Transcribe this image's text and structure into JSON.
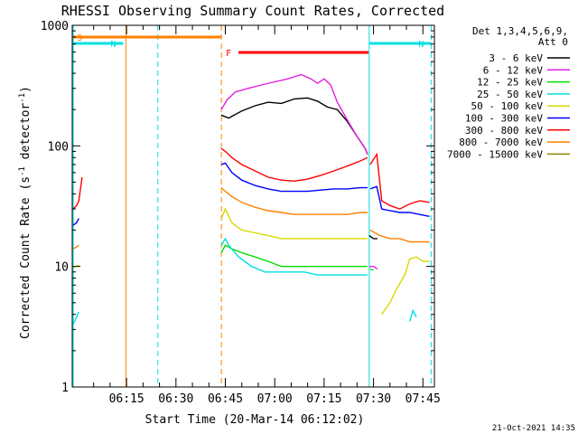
{
  "chart_data": {
    "type": "line",
    "title": "RHESSI Observing Summary Count Rates, Corrected",
    "xlabel": "Start Time (20-Mar-14 06:12:02)",
    "ylabel": "Corrected Count Rate (s⁻¹ detector⁻¹)",
    "ylabel_parts": {
      "base": "Corrected Count Rate (s",
      "sup1": "-1",
      "mid": " detector",
      "sup2": "-1",
      "end": ")"
    },
    "y_scale": "log",
    "ylim": [
      1,
      1000
    ],
    "y_ticks": [
      {
        "value": 1,
        "label": "1"
      },
      {
        "value": 10,
        "label": "10"
      },
      {
        "value": 100,
        "label": "100"
      },
      {
        "value": 1000,
        "label": "1000"
      }
    ],
    "xlim_minutes": [
      358.5,
      468.5
    ],
    "x_ticks": [
      {
        "minutes": 375,
        "label": "06:15"
      },
      {
        "minutes": 390,
        "label": "06:30"
      },
      {
        "minutes": 405,
        "label": "06:45"
      },
      {
        "minutes": 420,
        "label": "07:00"
      },
      {
        "minutes": 435,
        "label": "07:15"
      },
      {
        "minutes": 450,
        "label": "07:30"
      },
      {
        "minutes": 465,
        "label": "07:45"
      }
    ],
    "legend": {
      "placement": "right",
      "header": [
        "Det 1,3,4,5,6,9,",
        "Att 0"
      ],
      "entries": [
        {
          "label": "3 - 6 keV",
          "color": "#000000"
        },
        {
          "label": "6 - 12 keV",
          "color": "#e020e0"
        },
        {
          "label": "12 - 25 keV",
          "color": "#00dd00"
        },
        {
          "label": "25 - 50 keV",
          "color": "#00e0e0"
        },
        {
          "label": "50 - 100 keV",
          "color": "#d8d800"
        },
        {
          "label": "100 - 300 keV",
          "color": "#0000ff"
        },
        {
          "label": "300 - 800 keV",
          "color": "#ff0000"
        },
        {
          "label": "800 - 7000 keV",
          "color": "#ff8000"
        },
        {
          "label": "7000 - 15000 keV",
          "color": "#888800"
        }
      ]
    },
    "flags": [
      {
        "label": "S",
        "color": "#ff8000",
        "start_min": 358.8,
        "end_min": 403.8
      },
      {
        "label": "N",
        "color": "#00e0e0",
        "start_min": 358.8,
        "end_min": 374.0
      },
      {
        "label": "N",
        "color": "#00e0e0",
        "start_min": 448.7,
        "end_min": 467.5
      },
      {
        "label": "F",
        "color": "#ff0000",
        "start_min": 409.0,
        "end_min": 448.5
      }
    ],
    "night_lines": [
      {
        "minutes": 358.8,
        "color": "#00e0e0",
        "style": "solid"
      },
      {
        "minutes": 374.8,
        "color": "#ff8000",
        "style": "solid"
      },
      {
        "minutes": 384.5,
        "color": "#00e0e0",
        "style": "dashed"
      },
      {
        "minutes": 403.8,
        "color": "#ff8000",
        "style": "dashed"
      },
      {
        "minutes": 448.7,
        "color": "#00e0e0",
        "style": "solid"
      },
      {
        "minutes": 467.5,
        "color": "#00e0e0",
        "style": "dashed"
      }
    ],
    "series": [
      {
        "name": "3 - 6 keV",
        "color": "#000000",
        "segments": [
          [
            [
              403.8,
              180
            ],
            [
              406,
              170
            ],
            [
              410,
              195
            ],
            [
              414,
              215
            ],
            [
              418,
              230
            ],
            [
              422,
              225
            ],
            [
              426,
              245
            ],
            [
              430,
              250
            ],
            [
              433,
              235
            ],
            [
              436,
              210
            ],
            [
              439,
              200
            ],
            [
              442,
              160
            ],
            [
              445,
              120
            ],
            [
              447.5,
              95
            ],
            [
              448.2,
              85
            ]
          ],
          [
            [
              448.7,
              18
            ],
            [
              450,
              17
            ],
            [
              451.2,
              17
            ]
          ]
        ]
      },
      {
        "name": "6 - 12 keV",
        "color": "#e020e0",
        "segments": [
          [
            [
              403.8,
              200
            ],
            [
              405.5,
              240
            ],
            [
              408,
              280
            ],
            [
              412,
              300
            ],
            [
              416,
              320
            ],
            [
              420,
              340
            ],
            [
              424,
              360
            ],
            [
              428,
              390
            ],
            [
              431,
              360
            ],
            [
              433,
              330
            ],
            [
              435,
              360
            ],
            [
              437,
              320
            ],
            [
              439,
              230
            ],
            [
              442,
              165
            ],
            [
              445,
              120
            ],
            [
              447.5,
              95
            ],
            [
              448.2,
              85
            ]
          ],
          [
            [
              448.7,
              10
            ],
            [
              450,
              10
            ],
            [
              451.2,
              9.5
            ]
          ]
        ]
      },
      {
        "name": "12 - 25 keV",
        "color": "#00dd00",
        "segments": [
          [
            [
              403.8,
              13
            ],
            [
              405,
              15
            ],
            [
              407,
              14
            ],
            [
              410,
              13
            ],
            [
              414,
              12
            ],
            [
              418,
              11
            ],
            [
              422,
              10
            ],
            [
              426,
              10
            ],
            [
              430,
              10
            ],
            [
              434,
              10
            ],
            [
              438,
              10
            ],
            [
              442,
              10
            ],
            [
              446,
              10
            ],
            [
              448.2,
              10
            ]
          ],
          [
            [
              449,
              9.5
            ],
            [
              450,
              9.3
            ]
          ]
        ]
      },
      {
        "name": "25 - 50 keV",
        "color": "#00e0e0",
        "segments": [
          [
            [
              358.8,
              3.3
            ],
            [
              359.8,
              3.8
            ],
            [
              360.5,
              4.2
            ]
          ],
          [
            [
              403.8,
              15
            ],
            [
              405,
              17
            ],
            [
              406,
              15
            ],
            [
              409,
              12
            ],
            [
              413,
              10
            ],
            [
              417,
              9
            ],
            [
              421,
              9
            ],
            [
              425,
              9
            ],
            [
              429,
              9
            ],
            [
              433,
              8.5
            ],
            [
              437,
              8.5
            ],
            [
              441,
              8.5
            ],
            [
              445,
              8.5
            ],
            [
              448.2,
              8.5
            ]
          ],
          [
            [
              461,
              3.5
            ],
            [
              462,
              4.3
            ],
            [
              463,
              3.8
            ]
          ]
        ]
      },
      {
        "name": "50 - 100 keV",
        "color": "#d8d800",
        "segments": [
          [
            [
              358.8,
              9.8
            ],
            [
              359.8,
              10
            ],
            [
              360.5,
              10.3
            ]
          ],
          [
            [
              403.8,
              25
            ],
            [
              405,
              30
            ],
            [
              407,
              23
            ],
            [
              410,
              20
            ],
            [
              414,
              19
            ],
            [
              418,
              18
            ],
            [
              422,
              17
            ],
            [
              426,
              17
            ],
            [
              430,
              17
            ],
            [
              434,
              17
            ],
            [
              438,
              17
            ],
            [
              442,
              17
            ],
            [
              446,
              17
            ],
            [
              448.2,
              17
            ]
          ],
          [
            [
              452.5,
              4
            ],
            [
              455,
              5
            ],
            [
              457,
              6.5
            ],
            [
              459.5,
              8.5
            ],
            [
              461,
              11.5
            ],
            [
              463,
              12
            ],
            [
              465,
              11
            ],
            [
              467,
              11
            ]
          ]
        ]
      },
      {
        "name": "100 - 300 keV",
        "color": "#0000ff",
        "segments": [
          [
            [
              358.8,
              22
            ],
            [
              359.8,
              23
            ],
            [
              360.5,
              25
            ]
          ],
          [
            [
              403.8,
              70
            ],
            [
              405,
              72
            ],
            [
              407,
              60
            ],
            [
              410,
              52
            ],
            [
              414,
              47
            ],
            [
              418,
              44
            ],
            [
              422,
              42
            ],
            [
              426,
              42
            ],
            [
              430,
              42
            ],
            [
              434,
              43
            ],
            [
              438,
              44
            ],
            [
              442,
              44
            ],
            [
              446,
              45
            ],
            [
              448.2,
              45
            ]
          ],
          [
            [
              449,
              44
            ],
            [
              451,
              46
            ],
            [
              452.5,
              30
            ],
            [
              455,
              29
            ],
            [
              458,
              28
            ],
            [
              461,
              28
            ],
            [
              464,
              27
            ],
            [
              467,
              26
            ]
          ]
        ]
      },
      {
        "name": "300 - 800 keV",
        "color": "#ff0000",
        "segments": [
          [
            [
              358.8,
              30
            ],
            [
              359.8,
              32
            ],
            [
              360.5,
              35
            ],
            [
              361.5,
              55
            ]
          ],
          [
            [
              403.8,
              95
            ],
            [
              405,
              90
            ],
            [
              407,
              80
            ],
            [
              410,
              70
            ],
            [
              414,
              62
            ],
            [
              418,
              55
            ],
            [
              422,
              52
            ],
            [
              426,
              51
            ],
            [
              430,
              53
            ],
            [
              434,
              57
            ],
            [
              438,
              62
            ],
            [
              442,
              68
            ],
            [
              446,
              75
            ],
            [
              448.2,
              80
            ]
          ],
          [
            [
              449,
              70
            ],
            [
              451,
              85
            ],
            [
              452.5,
              35
            ],
            [
              455,
              32
            ],
            [
              458,
              30
            ],
            [
              461,
              33
            ],
            [
              464,
              35
            ],
            [
              467,
              34
            ]
          ]
        ]
      },
      {
        "name": "800 - 7000 keV",
        "color": "#ff8000",
        "segments": [
          [
            [
              358.8,
              14
            ],
            [
              359.8,
              14.5
            ],
            [
              360.5,
              15
            ]
          ],
          [
            [
              403.8,
              45
            ],
            [
              405,
              42
            ],
            [
              407,
              38
            ],
            [
              410,
              34
            ],
            [
              414,
              31
            ],
            [
              418,
              29
            ],
            [
              422,
              28
            ],
            [
              426,
              27
            ],
            [
              430,
              27
            ],
            [
              434,
              27
            ],
            [
              438,
              27
            ],
            [
              442,
              27
            ],
            [
              446,
              28
            ],
            [
              448.2,
              28
            ]
          ],
          [
            [
              449,
              20
            ],
            [
              452,
              18
            ],
            [
              455,
              17
            ],
            [
              458,
              17
            ],
            [
              461,
              16
            ],
            [
              464,
              16
            ],
            [
              467,
              16
            ]
          ]
        ]
      },
      {
        "name": "7000 - 15000 keV",
        "color": "#888800",
        "segments": []
      }
    ]
  },
  "footer_timestamp": "21-Oct-2021 14:35"
}
